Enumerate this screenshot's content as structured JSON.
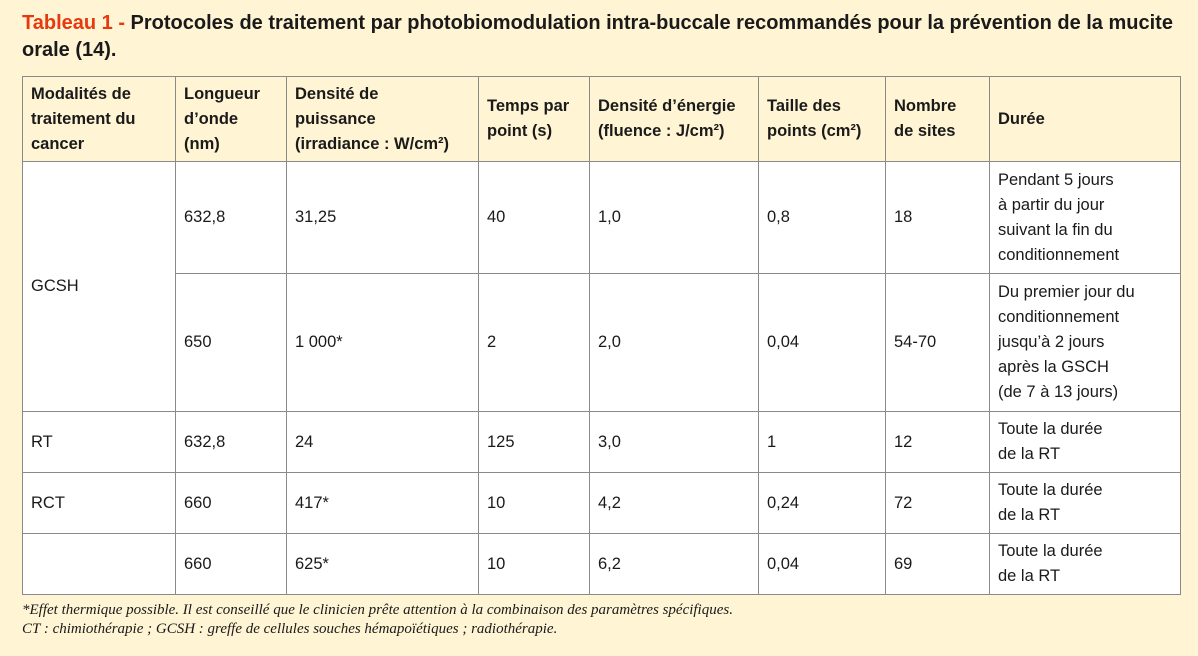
{
  "caption": {
    "label": "Tableau 1 - ",
    "title": "Protocoles de traitement par photobiomodulation intra-buccale recommandés pour la prévention de la mucite orale (14)."
  },
  "table": {
    "headers": [
      "Modalités de\ntraitement du\ncancer",
      "Longueur\nd’onde\n(nm)",
      "Densité de\npuissance\n(irradiance : W/cm²)",
      "Temps par\npoint (s)",
      "Densité d’énergie\n(fluence : J/cm²)",
      "Taille des\npoints (cm²)",
      "Nombre\nde sites",
      "Durée"
    ],
    "rows": [
      {
        "modality": "GCSH",
        "wavelength": "632,8",
        "irradiance": "31,25",
        "time": "40",
        "fluence": "1,0",
        "size": "0,8",
        "sites": "18",
        "duration": "Pendant 5 jours\nà partir du jour\nsuivant la fin du\nconditionnement"
      },
      {
        "modality": "",
        "wavelength": "650",
        "irradiance": "1 000*",
        "time": "2",
        "fluence": "2,0",
        "size": "0,04",
        "sites": "54-70",
        "duration": "Du premier jour du\nconditionnement\njusqu’à 2 jours\naprès la GSCH\n(de 7 à 13 jours)"
      },
      {
        "modality": "RT",
        "wavelength": "632,8",
        "irradiance": "24",
        "time": "125",
        "fluence": "3,0",
        "size": "1",
        "sites": "12",
        "duration": "Toute la durée\n de la RT"
      },
      {
        "modality": "RCT",
        "wavelength": "660",
        "irradiance": "417*",
        "time": "10",
        "fluence": "4,2",
        "size": "0,24",
        "sites": "72",
        "duration": "Toute la durée\nde la RT"
      },
      {
        "modality": "",
        "wavelength": "660",
        "irradiance": "625*",
        "time": "10",
        "fluence": "6,2",
        "size": "0,04",
        "sites": "69",
        "duration": "Toute la durée\nde la RT"
      }
    ]
  },
  "footnotes": [
    "*Effet thermique possible. Il est conseillé que le clinicien prête attention à la combinaison des paramètres spécifiques.",
    "CT : chimiothérapie ; GCSH : greffe de cellules souches hémapoïétiques ; radiothérapie."
  ],
  "colors": {
    "background": "#fff5d4",
    "label_accent": "#e8380d",
    "cell": "#ffffff",
    "border": "#8a8a8a"
  }
}
